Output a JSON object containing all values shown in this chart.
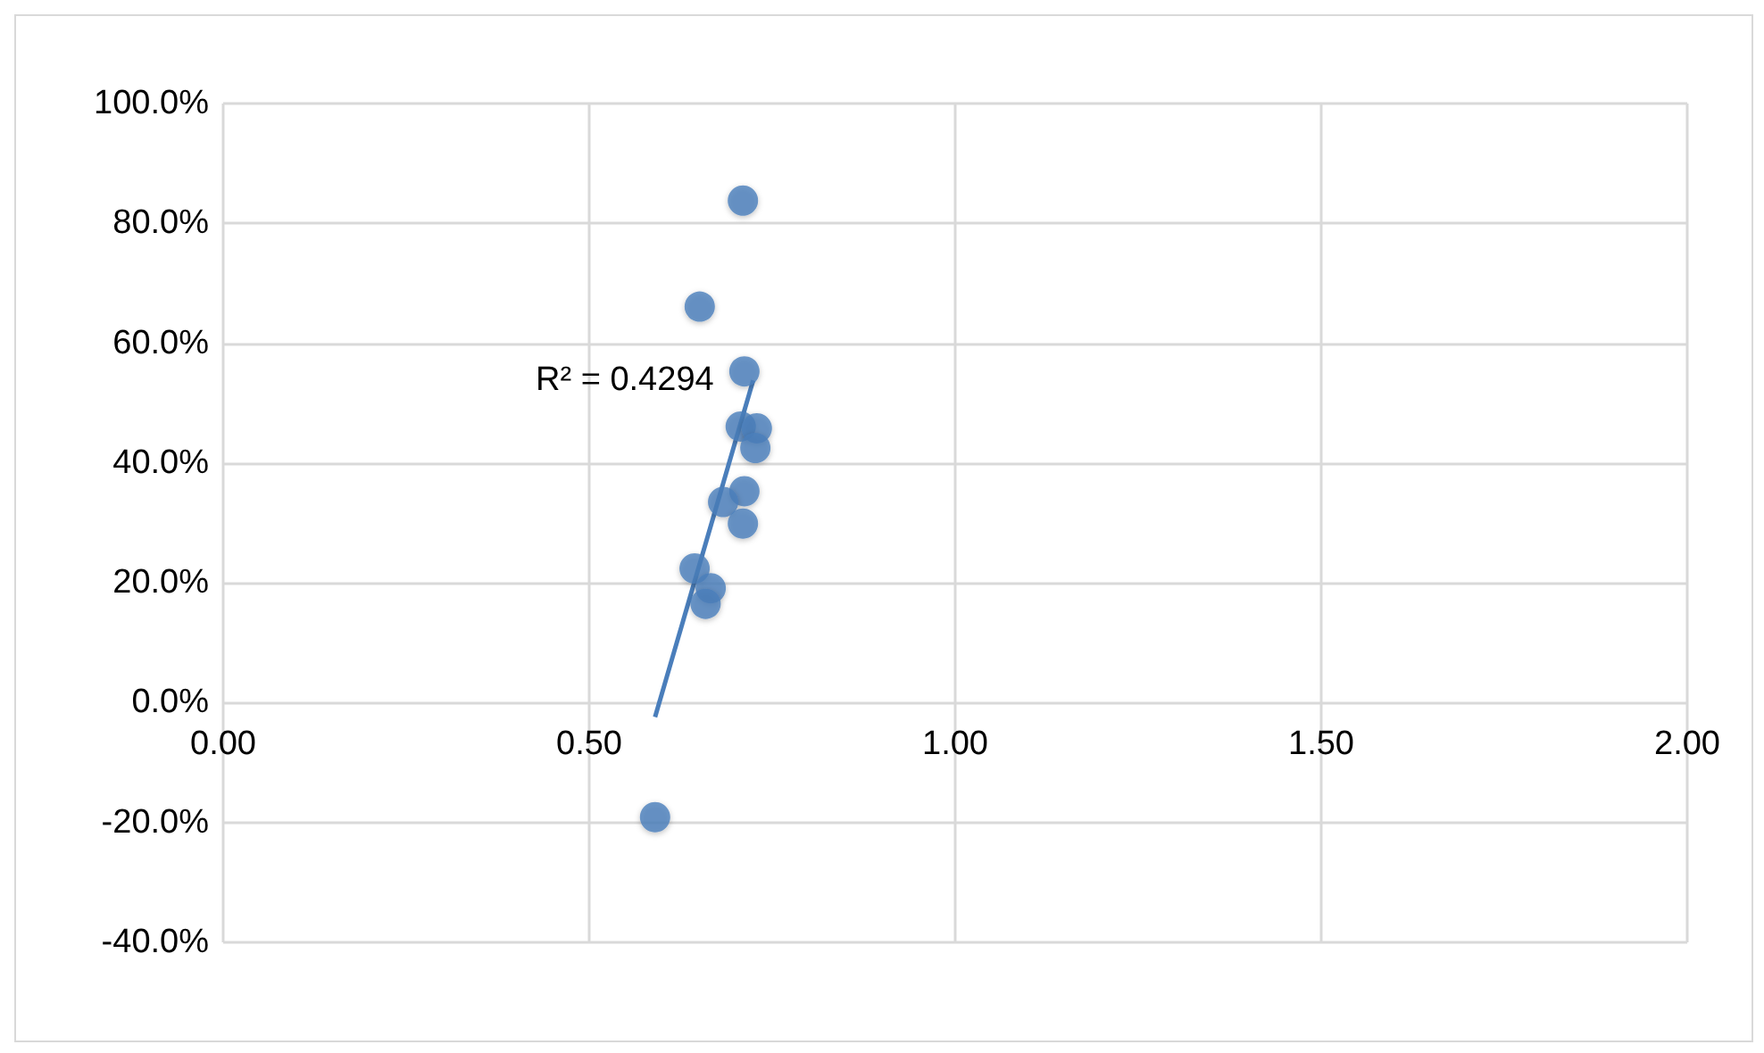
{
  "chart_data": {
    "type": "scatter",
    "marker": "circle",
    "grid": true,
    "xlim": [
      0,
      2
    ],
    "xticks": [
      {
        "value": 0,
        "label": "0.00"
      },
      {
        "value": 0.5,
        "label": "0.50"
      },
      {
        "value": 1,
        "label": "1.00"
      },
      {
        "value": 1.5,
        "label": "1.50"
      },
      {
        "value": 2,
        "label": "2.00"
      }
    ],
    "ylim": [
      -40,
      100
    ],
    "yticks": [
      {
        "value": -40,
        "label": "-40.0%"
      },
      {
        "value": -20,
        "label": "-20.0%"
      },
      {
        "value": 0,
        "label": "0.0%"
      },
      {
        "value": 20,
        "label": "20.0%"
      },
      {
        "value": 40,
        "label": "40.0%"
      },
      {
        "value": 60,
        "label": "60.0%"
      },
      {
        "value": 80,
        "label": "80.0%"
      },
      {
        "value": 100,
        "label": "100.0%"
      }
    ],
    "annotations": [
      "R² = 0.4294"
    ],
    "series": [
      {
        "color": "#4a7ebb",
        "x": [
          0.71,
          0.651,
          0.712,
          0.707,
          0.729,
          0.727,
          0.712,
          0.683,
          0.71,
          0.644,
          0.666,
          0.659,
          0.59
        ],
        "values": [
          83.8,
          66.1,
          55.3,
          46.1,
          45.8,
          42.5,
          35.3,
          33.5,
          29.9,
          22.4,
          19.1,
          16.5,
          -19.1
        ]
      },
      {
        "type": "line",
        "color": "#4a7ebb",
        "marker": "none",
        "line_style": "solid",
        "x": [
          0.59,
          0.724
        ],
        "values": [
          -2.4,
          53.8
        ]
      }
    ]
  }
}
